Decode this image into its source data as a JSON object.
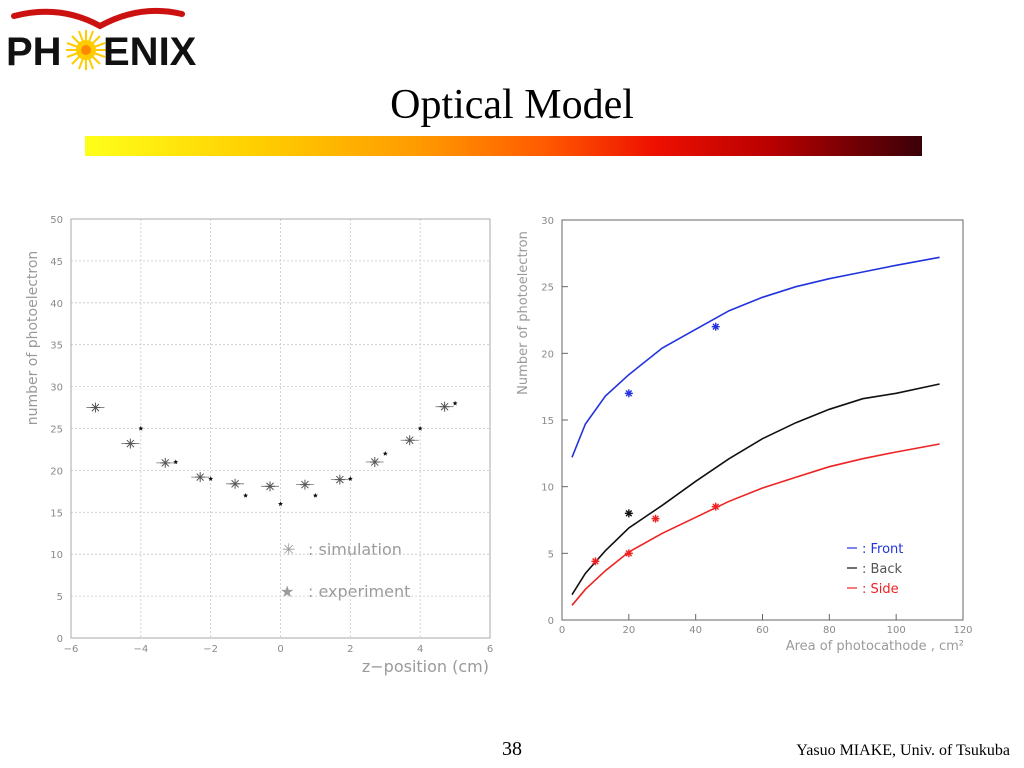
{
  "slide": {
    "title": "Optical Model",
    "page_number": "38",
    "credit": "Yasuo MIAKE, Univ. of Tsukuba"
  },
  "logo": {
    "text_left": "PH",
    "text_right": "ENIX",
    "full": "PHENIX"
  },
  "colors": {
    "front": "#2233dd",
    "back": "#111111",
    "side": "#ee2222",
    "sim": "#555555",
    "grid": "#bbbbbb"
  },
  "chart_data": [
    {
      "type": "scatter",
      "xlabel": "z−position (cm)",
      "ylabel": "number of photoelectron",
      "xlim": [
        -6,
        6
      ],
      "ylim": [
        0,
        50
      ],
      "xticks": [
        "−6",
        "−4",
        "−2",
        "0",
        "2",
        "4",
        "6"
      ],
      "yticks": [
        "0",
        "5",
        "10",
        "15",
        "20",
        "25",
        "30",
        "35",
        "40",
        "45",
        "50"
      ],
      "grid": true,
      "legend": [
        {
          "marker": "✳",
          "label": ": simulation"
        },
        {
          "marker": "★",
          "label": ": experiment"
        }
      ],
      "series": [
        {
          "name": "simulation",
          "x": [
            -5.3,
            -4.3,
            -3.3,
            -2.3,
            -1.3,
            -0.3,
            0.7,
            1.7,
            2.7,
            3.7,
            4.7
          ],
          "y": [
            27.5,
            23.2,
            20.9,
            19.2,
            18.4,
            18.1,
            18.3,
            18.9,
            21.0,
            23.6,
            27.6
          ]
        },
        {
          "name": "experiment",
          "x": [
            -4.0,
            -3.0,
            -2.0,
            -1.0,
            0.0,
            1.0,
            2.0,
            3.0,
            4.0,
            5.0
          ],
          "y": [
            25.0,
            21.0,
            19.0,
            17.0,
            16.0,
            17.0,
            19.0,
            22.0,
            25.0,
            28.0
          ]
        }
      ]
    },
    {
      "type": "line",
      "xlabel": "Area of photocathode , cm²",
      "ylabel": "Number of photoelectron",
      "xlim": [
        0,
        120
      ],
      "ylim": [
        0,
        30
      ],
      "xticks": [
        "0",
        "20",
        "40",
        "60",
        "80",
        "100",
        "120"
      ],
      "yticks": [
        "0",
        "5",
        "10",
        "15",
        "20",
        "25",
        "30"
      ],
      "grid": false,
      "legend": [
        {
          "label": ": Front",
          "color": "#2233dd"
        },
        {
          "label": ": Back",
          "color": "#111111"
        },
        {
          "label": ": Side",
          "color": "#ee2222"
        }
      ],
      "series": [
        {
          "name": "Front",
          "x": [
            3,
            7,
            13,
            20,
            30,
            40,
            50,
            60,
            70,
            80,
            90,
            100,
            113
          ],
          "y": [
            12.2,
            14.7,
            16.8,
            18.4,
            20.4,
            21.8,
            23.2,
            24.2,
            25.0,
            25.6,
            26.1,
            26.6,
            27.2
          ],
          "points_x": [
            20,
            46
          ],
          "points_y": [
            17.0,
            22.0
          ]
        },
        {
          "name": "Back",
          "x": [
            3,
            7,
            13,
            20,
            30,
            40,
            50,
            60,
            70,
            80,
            90,
            100,
            113
          ],
          "y": [
            1.9,
            3.5,
            5.2,
            6.9,
            8.6,
            10.4,
            12.1,
            13.6,
            14.8,
            15.8,
            16.6,
            17.0,
            17.7
          ],
          "points_x": [
            20
          ],
          "points_y": [
            8.0
          ]
        },
        {
          "name": "Side",
          "x": [
            3,
            7,
            13,
            20,
            30,
            40,
            50,
            60,
            70,
            80,
            90,
            100,
            113
          ],
          "y": [
            1.1,
            2.3,
            3.7,
            5.1,
            6.5,
            7.7,
            8.9,
            9.9,
            10.7,
            11.5,
            12.1,
            12.6,
            13.2
          ],
          "points_x": [
            10,
            20,
            28,
            46
          ],
          "points_y": [
            4.4,
            5.0,
            7.6,
            8.5
          ]
        }
      ]
    }
  ]
}
